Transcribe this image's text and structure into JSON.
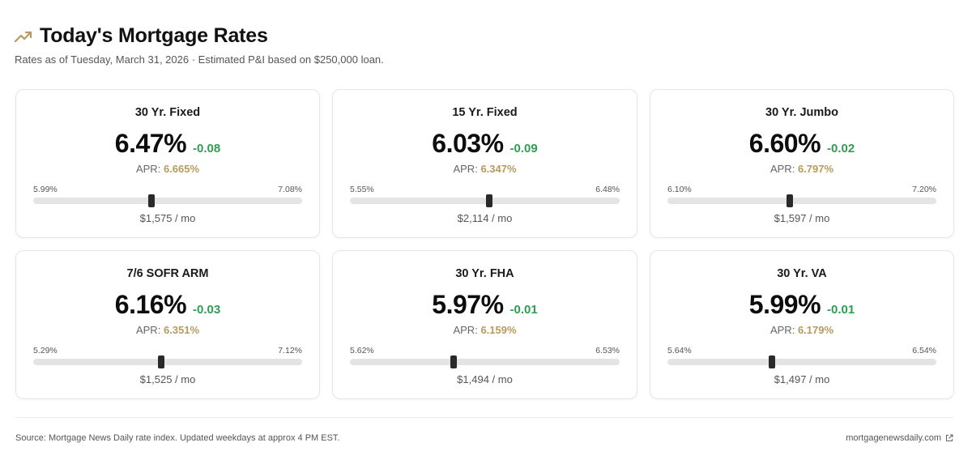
{
  "header": {
    "title": "Today's Mortgage Rates",
    "subtitle": "Rates as of Tuesday, March 31, 2026 · Estimated P&I based on $250,000 loan.",
    "icon": "trending-up-icon",
    "accent_color": "#b89a5e"
  },
  "colors": {
    "change_negative": "#2e9e52",
    "apr_value": "#b89a5e",
    "slider_track": "#e4e4e4",
    "slider_thumb": "#2a2a2a"
  },
  "cards": [
    {
      "title": "30 Yr. Fixed",
      "rate": "6.47%",
      "change": "-0.08",
      "apr_label": "APR:",
      "apr": "6.665%",
      "range_low": "5.99%",
      "range_high": "7.08%",
      "monthly": "$1,575 / mo",
      "rate_value": 6.47,
      "low_value": 5.99,
      "high_value": 7.08
    },
    {
      "title": "15 Yr. Fixed",
      "rate": "6.03%",
      "change": "-0.09",
      "apr_label": "APR:",
      "apr": "6.347%",
      "range_low": "5.55%",
      "range_high": "6.48%",
      "monthly": "$2,114 / mo",
      "rate_value": 6.03,
      "low_value": 5.55,
      "high_value": 6.48
    },
    {
      "title": "30 Yr. Jumbo",
      "rate": "6.60%",
      "change": "-0.02",
      "apr_label": "APR:",
      "apr": "6.797%",
      "range_low": "6.10%",
      "range_high": "7.20%",
      "monthly": "$1,597 / mo",
      "rate_value": 6.6,
      "low_value": 6.1,
      "high_value": 7.2
    },
    {
      "title": "7/6 SOFR ARM",
      "rate": "6.16%",
      "change": "-0.03",
      "apr_label": "APR:",
      "apr": "6.351%",
      "range_low": "5.29%",
      "range_high": "7.12%",
      "monthly": "$1,525 / mo",
      "rate_value": 6.16,
      "low_value": 5.29,
      "high_value": 7.12
    },
    {
      "title": "30 Yr. FHA",
      "rate": "5.97%",
      "change": "-0.01",
      "apr_label": "APR:",
      "apr": "6.159%",
      "range_low": "5.62%",
      "range_high": "6.53%",
      "monthly": "$1,494 / mo",
      "rate_value": 5.97,
      "low_value": 5.62,
      "high_value": 6.53
    },
    {
      "title": "30 Yr. VA",
      "rate": "5.99%",
      "change": "-0.01",
      "apr_label": "APR:",
      "apr": "6.179%",
      "range_low": "5.64%",
      "range_high": "6.54%",
      "monthly": "$1,497 / mo",
      "rate_value": 5.99,
      "low_value": 5.64,
      "high_value": 6.54
    }
  ],
  "footer": {
    "source": "Source: Mortgage News Daily rate index. Updated weekdays at approx 4 PM EST.",
    "link_text": "mortgagenewsdaily.com",
    "link_icon": "external-link-icon"
  }
}
